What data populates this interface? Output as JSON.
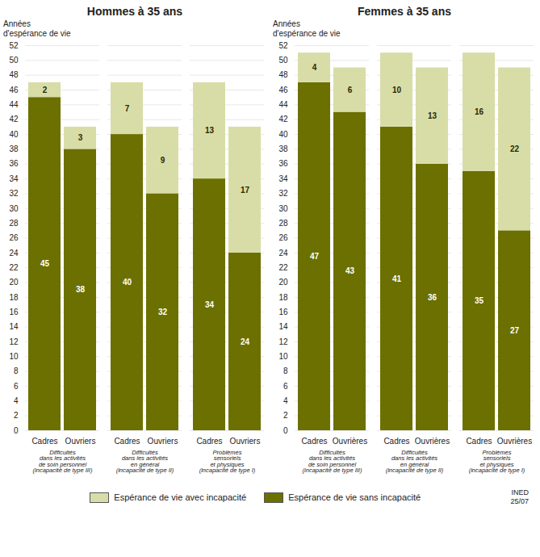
{
  "chart_data": [
    {
      "type": "bar",
      "stacked": true,
      "title": "Hommes à 35 ans",
      "ylabel": "Années\nd'espérance de vie",
      "categories": [
        "Cadres",
        "Ouvriers",
        "Cadres",
        "Ouvriers",
        "Cadres",
        "Ouvriers"
      ],
      "groups": [
        "Difficultés\ndans les activités\nde soin personnel\n(incapacité de type III)",
        "Difficultés\ndans les activités\nen général\n(incapacité de type II)",
        "Problèmes\nsensoriels\net physiques\n(incapacité de type I)"
      ],
      "series": [
        {
          "name": "Espérance de vie avec incapacité",
          "color": "#d8dda8",
          "values": [
            2,
            3,
            7,
            9,
            13,
            17
          ]
        },
        {
          "name": "Espérance de vie sans incapacité",
          "color": "#6b7000",
          "values": [
            45,
            38,
            40,
            32,
            34,
            24
          ]
        }
      ],
      "ylim": [
        0,
        52
      ],
      "yticks": [
        0,
        2,
        4,
        6,
        8,
        10,
        12,
        14,
        16,
        18,
        20,
        22,
        24,
        26,
        28,
        30,
        32,
        34,
        36,
        38,
        40,
        42,
        44,
        46,
        48,
        50,
        52
      ],
      "grid": true,
      "data_labels": true,
      "legend": "bottom"
    },
    {
      "type": "bar",
      "stacked": true,
      "title": "Femmes à 35 ans",
      "ylabel": "Années\nd'espérance de vie",
      "categories": [
        "Cadres",
        "Ouvrières",
        "Cadres",
        "Ouvrières",
        "Cadres",
        "Ouvrières"
      ],
      "groups": [
        "Difficultés\ndans les activités\nde soin personnel\n(incapacité de type III)",
        "Difficultés\ndans les activités\nen général\n(incapacité de type II)",
        "Problèmes\nsensoriels\net physiques\n(incapacité de type I)"
      ],
      "series": [
        {
          "name": "Espérance de vie avec incapacité",
          "color": "#d8dda8",
          "values": [
            4,
            6,
            10,
            13,
            16,
            22
          ]
        },
        {
          "name": "Espérance de vie sans incapacité",
          "color": "#6b7000",
          "values": [
            47,
            43,
            41,
            36,
            35,
            27
          ]
        }
      ],
      "ylim": [
        0,
        52
      ],
      "yticks": [
        0,
        2,
        4,
        6,
        8,
        10,
        12,
        14,
        16,
        18,
        20,
        22,
        24,
        26,
        28,
        30,
        32,
        34,
        36,
        38,
        40,
        42,
        44,
        46,
        48,
        50,
        52
      ],
      "grid": true,
      "data_labels": true,
      "legend": "bottom",
      "source": "INED\n25/07"
    }
  ]
}
